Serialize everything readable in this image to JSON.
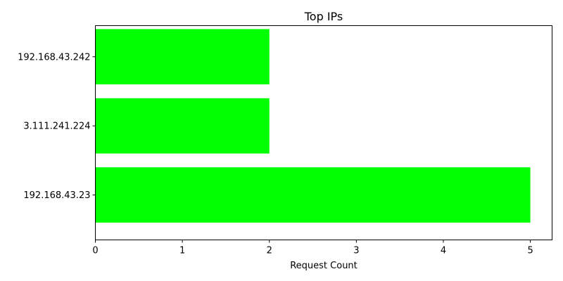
{
  "chart_data": {
    "type": "bar",
    "orientation": "horizontal",
    "title": "Top IPs",
    "xlabel": "Request Count",
    "ylabel": "",
    "categories": [
      "192.168.43.23",
      "3.111.241.224",
      "192.168.43.242"
    ],
    "values": [
      5,
      2,
      2
    ],
    "xlim": [
      0,
      5.25
    ],
    "xticks": [
      "0",
      "1",
      "2",
      "3",
      "4",
      "5"
    ],
    "bar_color": "#00ff00",
    "grid": false,
    "legend": false
  }
}
